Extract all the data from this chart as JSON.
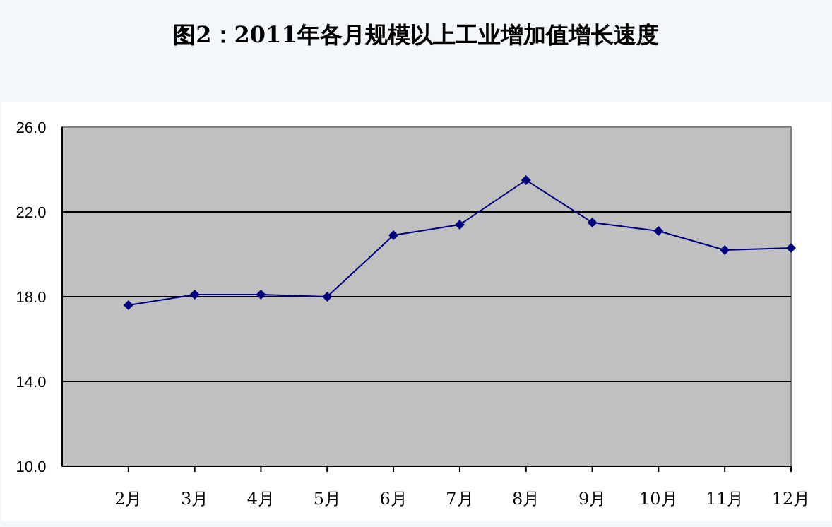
{
  "chart_data": {
    "type": "line",
    "title": "图2：2011年各月规模以上工业增加值增长速度",
    "categories": [
      "2月",
      "3月",
      "4月",
      "5月",
      "6月",
      "7月",
      "8月",
      "9月",
      "10月",
      "11月",
      "12月"
    ],
    "series": [
      {
        "color": "#000080",
        "values": [
          17.6,
          18.1,
          18.1,
          18.0,
          20.9,
          21.4,
          23.5,
          21.5,
          21.1,
          20.2,
          20.3
        ]
      }
    ],
    "ylim": [
      10,
      26
    ],
    "yticks": [
      {
        "value": 10,
        "label": "10.0"
      },
      {
        "value": 14,
        "label": "14.0"
      },
      {
        "value": 18,
        "label": "18.0"
      },
      {
        "value": 22,
        "label": "22.0"
      },
      {
        "value": 26,
        "label": "26.0"
      }
    ],
    "grid": "y",
    "marker": "diamond",
    "line_style": "solid"
  }
}
